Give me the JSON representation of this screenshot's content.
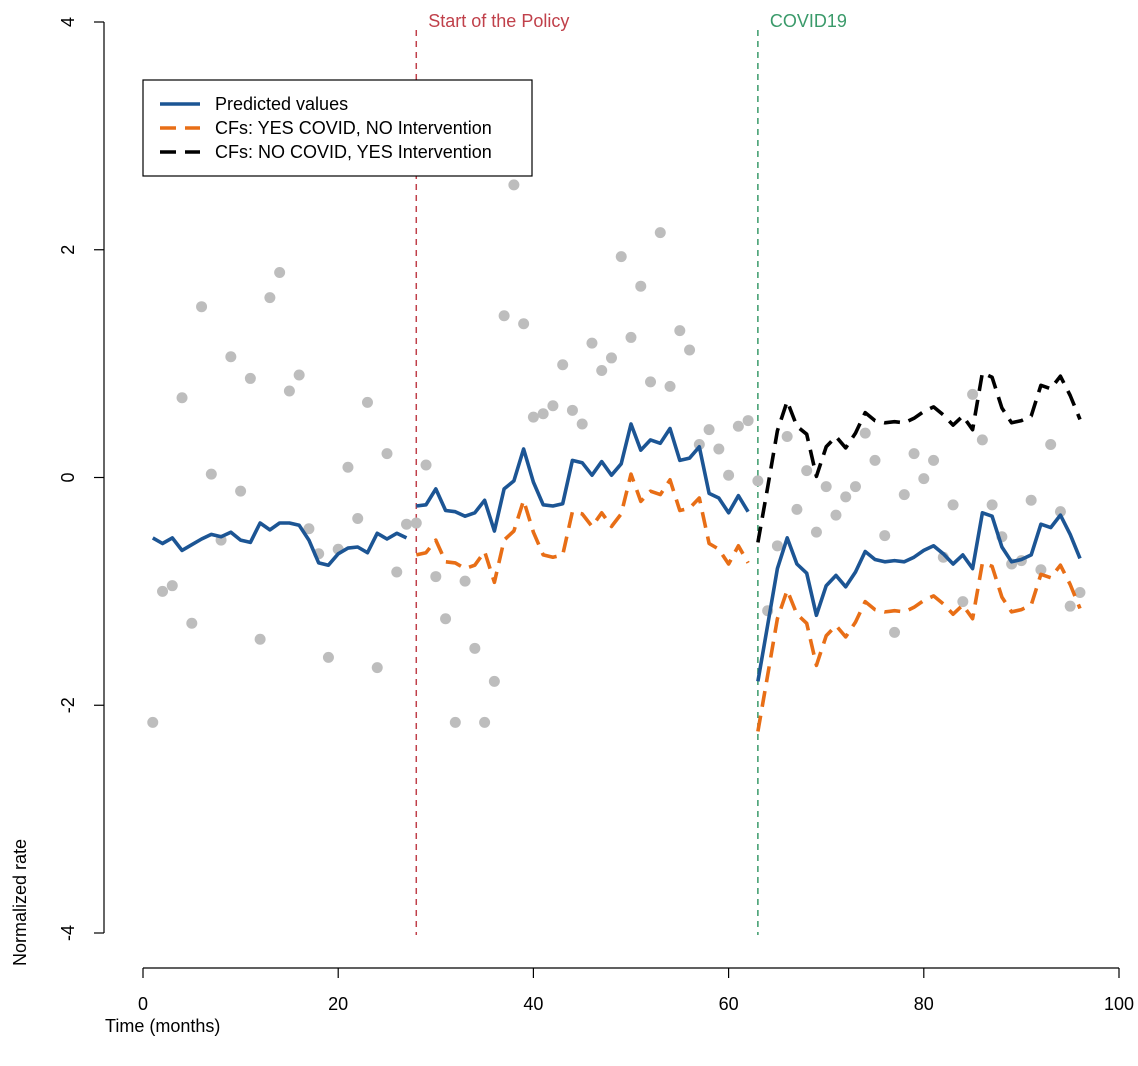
{
  "chart_data": {
    "type": "line",
    "xlabel": "Time (months)",
    "ylabel": "Normalized rate",
    "xlim": [
      0,
      100
    ],
    "ylim": [
      -4,
      4
    ],
    "xticks": [
      0,
      20,
      40,
      60,
      80,
      100
    ],
    "yticks": [
      -4,
      -2,
      0,
      2,
      4
    ],
    "grid": false,
    "legend_position": "top-left",
    "annotations": [
      {
        "label": "Start of the Policy",
        "x": 28,
        "color": "#c0404a"
      },
      {
        "label": "COVID19",
        "x": 63,
        "color": "#3a9a6a"
      }
    ],
    "scatter": {
      "name": "observed",
      "color": "#bdbdbd",
      "x": [
        1,
        2,
        3,
        4,
        5,
        6,
        7,
        8,
        9,
        10,
        11,
        12,
        13,
        14,
        15,
        16,
        17,
        18,
        19,
        20,
        21,
        22,
        23,
        24,
        25,
        26,
        27,
        28,
        29,
        30,
        31,
        32,
        33,
        34,
        35,
        36,
        37,
        38,
        39,
        40,
        41,
        42,
        43,
        44,
        45,
        46,
        47,
        48,
        49,
        50,
        51,
        52,
        53,
        54,
        55,
        56,
        57,
        58,
        59,
        60,
        61,
        62,
        63,
        64,
        65,
        66,
        67,
        68,
        69,
        70,
        71,
        72,
        73,
        74,
        75,
        76,
        77,
        78,
        79,
        80,
        81,
        82,
        83,
        84,
        85,
        86,
        87,
        88,
        89,
        90,
        91,
        92,
        93,
        94,
        95,
        96
      ],
      "y": [
        -2.15,
        -1.0,
        -0.95,
        0.7,
        -1.28,
        1.5,
        0.03,
        -0.55,
        1.06,
        -0.12,
        0.87,
        -1.42,
        1.58,
        1.8,
        0.76,
        0.9,
        -0.45,
        -0.67,
        -1.58,
        -0.63,
        0.09,
        -0.36,
        0.66,
        -1.67,
        0.21,
        -0.83,
        -0.41,
        -0.4,
        0.11,
        -0.87,
        -1.24,
        -2.15,
        -0.91,
        -1.5,
        -2.15,
        -1.79,
        1.42,
        2.57,
        1.35,
        0.53,
        0.56,
        0.63,
        0.99,
        0.59,
        0.47,
        1.18,
        0.94,
        1.05,
        1.94,
        1.23,
        1.68,
        0.84,
        2.15,
        0.8,
        1.29,
        1.12,
        0.29,
        0.42,
        0.25,
        0.02,
        0.45,
        0.5,
        -0.03,
        -1.17,
        -0.6,
        0.36,
        -0.28,
        0.06,
        -0.48,
        -0.08,
        -0.33,
        -0.17,
        -0.08,
        0.39,
        0.15,
        -0.51,
        -1.36,
        -0.15,
        0.21,
        -0.01,
        0.15,
        -0.7,
        -0.24,
        -1.09,
        0.73,
        0.33,
        -0.24,
        -0.52,
        -0.76,
        -0.73,
        -0.2,
        -0.81,
        0.29,
        -0.3,
        -1.13,
        -1.01
      ]
    },
    "series": [
      {
        "name": "Predicted values",
        "color": "#1c5594",
        "style": "solid",
        "segments": [
          {
            "x": [
              1,
              2,
              3,
              4,
              5,
              6,
              7,
              8,
              9,
              10,
              11,
              12,
              13,
              14,
              15,
              16,
              17,
              18,
              19,
              20,
              21,
              22,
              23,
              24,
              25,
              26,
              27
            ],
            "y": [
              -0.53,
              -0.58,
              -0.53,
              -0.64,
              -0.59,
              -0.54,
              -0.5,
              -0.52,
              -0.48,
              -0.55,
              -0.57,
              -0.4,
              -0.46,
              -0.4,
              -0.4,
              -0.42,
              -0.55,
              -0.75,
              -0.77,
              -0.67,
              -0.62,
              -0.61,
              -0.66,
              -0.49,
              -0.54,
              -0.49,
              -0.53
            ]
          },
          {
            "x": [
              28,
              29,
              30,
              31,
              32,
              33,
              34,
              35,
              36,
              37,
              38,
              39,
              40,
              41,
              42,
              43,
              44,
              45,
              46,
              47,
              48,
              49,
              50,
              51,
              52,
              53,
              54,
              55,
              56,
              57,
              58,
              59,
              60,
              61,
              62
            ],
            "y": [
              -0.25,
              -0.24,
              -0.1,
              -0.29,
              -0.3,
              -0.34,
              -0.31,
              -0.2,
              -0.47,
              -0.1,
              -0.03,
              0.25,
              -0.04,
              -0.24,
              -0.25,
              -0.23,
              0.15,
              0.13,
              0.02,
              0.14,
              0.02,
              0.12,
              0.47,
              0.24,
              0.33,
              0.3,
              0.43,
              0.15,
              0.17,
              0.27,
              -0.14,
              -0.18,
              -0.31,
              -0.16,
              -0.3
            ]
          },
          {
            "x": [
              63,
              64,
              65,
              66,
              67,
              68,
              69,
              70,
              71,
              72,
              73,
              74,
              75,
              76,
              77,
              78,
              79,
              80,
              81,
              82,
              83,
              84,
              85,
              86,
              87,
              88,
              89,
              90,
              91,
              92,
              93,
              94,
              95,
              96
            ],
            "y": [
              -1.79,
              -1.3,
              -0.8,
              -0.53,
              -0.76,
              -0.84,
              -1.21,
              -0.95,
              -0.86,
              -0.96,
              -0.83,
              -0.65,
              -0.72,
              -0.74,
              -0.73,
              -0.74,
              -0.7,
              -0.64,
              -0.6,
              -0.67,
              -0.76,
              -0.68,
              -0.8,
              -0.31,
              -0.34,
              -0.61,
              -0.74,
              -0.72,
              -0.68,
              -0.41,
              -0.44,
              -0.33,
              -0.5,
              -0.71
            ]
          }
        ]
      },
      {
        "name": "CFs: YES COVID, NO Intervention",
        "color": "#e86e16",
        "style": "dashed",
        "segments": [
          {
            "x": [
              28,
              29,
              30,
              31,
              32,
              33,
              34,
              35,
              36,
              37,
              38,
              39,
              40,
              41,
              42,
              43,
              44,
              45,
              46,
              47,
              48,
              49,
              50,
              51,
              52,
              53,
              54,
              55,
              56,
              57,
              58,
              59,
              60,
              61,
              62
            ],
            "y": [
              -0.68,
              -0.66,
              -0.55,
              -0.74,
              -0.75,
              -0.8,
              -0.77,
              -0.65,
              -0.92,
              -0.55,
              -0.47,
              -0.2,
              -0.48,
              -0.68,
              -0.7,
              -0.68,
              -0.3,
              -0.32,
              -0.43,
              -0.31,
              -0.43,
              -0.32,
              0.03,
              -0.21,
              -0.12,
              -0.15,
              -0.02,
              -0.29,
              -0.27,
              -0.18,
              -0.58,
              -0.63,
              -0.76,
              -0.6,
              -0.75
            ]
          },
          {
            "x": [
              63,
              64,
              65,
              66,
              67,
              68,
              69,
              70,
              71,
              72,
              73,
              74,
              75,
              76,
              77,
              78,
              79,
              80,
              81,
              82,
              83,
              84,
              85,
              86,
              87,
              88,
              89,
              90,
              91,
              92,
              93,
              94,
              95,
              96
            ],
            "y": [
              -2.23,
              -1.74,
              -1.24,
              -0.99,
              -1.2,
              -1.28,
              -1.65,
              -1.39,
              -1.3,
              -1.4,
              -1.27,
              -1.09,
              -1.16,
              -1.18,
              -1.17,
              -1.18,
              -1.14,
              -1.08,
              -1.04,
              -1.11,
              -1.2,
              -1.12,
              -1.24,
              -0.75,
              -0.78,
              -1.05,
              -1.18,
              -1.16,
              -1.12,
              -0.85,
              -0.88,
              -0.77,
              -0.94,
              -1.15
            ]
          }
        ]
      },
      {
        "name": "CFs: NO COVID, YES Intervention",
        "color": "#000000",
        "style": "dashed",
        "segments": [
          {
            "x": [
              63,
              64,
              65,
              66,
              67,
              68,
              69,
              70,
              71,
              72,
              73,
              74,
              75,
              76,
              77,
              78,
              79,
              80,
              81,
              82,
              83,
              84,
              85,
              86,
              87,
              88,
              89,
              90,
              91,
              92,
              93,
              94,
              95,
              96
            ],
            "y": [
              -0.57,
              -0.09,
              0.41,
              0.67,
              0.45,
              0.38,
              0.01,
              0.27,
              0.36,
              0.26,
              0.39,
              0.57,
              0.5,
              0.48,
              0.49,
              0.48,
              0.52,
              0.58,
              0.62,
              0.55,
              0.46,
              0.54,
              0.42,
              0.92,
              0.88,
              0.61,
              0.48,
              0.5,
              0.54,
              0.81,
              0.78,
              0.89,
              0.72,
              0.51
            ]
          }
        ]
      }
    ]
  }
}
